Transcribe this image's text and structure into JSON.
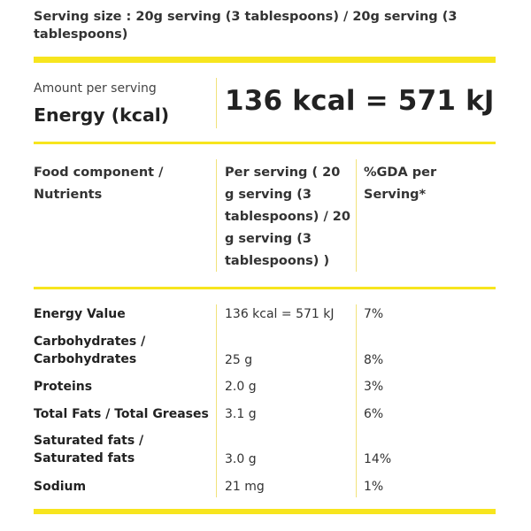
{
  "serving": {
    "text": "Serving size : 20g serving (3 tablespoons) / 20g serving (3 tablespoons)"
  },
  "energy": {
    "amount_label": "Amount per serving",
    "label": "Energy (kcal)",
    "value": "136 kcal = 571 kJ"
  },
  "table": {
    "headers": [
      "Food component / Nutrients",
      "Per serving ( 20 g serving (3 tablespoons) / 20 g serving (3 tablespoons) )",
      "%GDA per Serving*"
    ],
    "rows": [
      {
        "nutrient": "Energy Value",
        "per_serving": "136 kcal = 571 kJ",
        "gda": "7%"
      },
      {
        "nutrient": "Carbohydrates / Carbohydrates",
        "per_serving": "25 g",
        "gda": "8%"
      },
      {
        "nutrient": "Proteins",
        "per_serving": "2.0 g",
        "gda": "3%"
      },
      {
        "nutrient": "Total Fats / Total Greases",
        "per_serving": "3.1 g",
        "gda": "6%"
      },
      {
        "nutrient": "Saturated fats / Saturated fats",
        "per_serving": "3.0 g",
        "gda": "14%"
      },
      {
        "nutrient": "Sodium",
        "per_serving": "21 mg",
        "gda": "1%"
      }
    ]
  },
  "colors": {
    "accent_bar": "#f7e51e",
    "divider": "#f1e27a",
    "text": "#222222"
  }
}
